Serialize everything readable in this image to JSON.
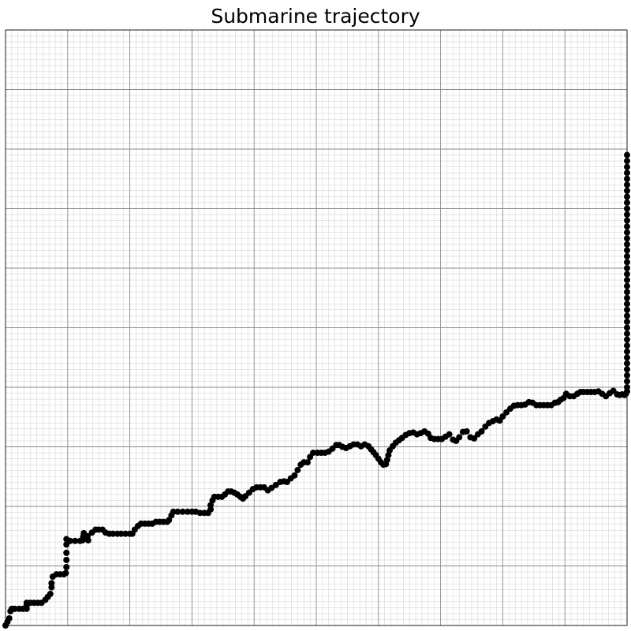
{
  "chart_data": {
    "type": "scatter",
    "title": "Submarine trajectory",
    "xlabel": "",
    "ylabel": "",
    "grid": true,
    "xlim": [
      0,
      100
    ],
    "ylim": [
      0,
      100
    ],
    "major_ticks": 10,
    "minor_ticks_per_major": 10,
    "points": [
      [
        0.0,
        0.0
      ],
      [
        0.3,
        0.6
      ],
      [
        0.6,
        1.2
      ],
      [
        0.8,
        2.4
      ],
      [
        1.0,
        2.8
      ],
      [
        1.5,
        2.8
      ],
      [
        2.2,
        2.8
      ],
      [
        2.8,
        2.8
      ],
      [
        3.4,
        2.8
      ],
      [
        3.4,
        3.4
      ],
      [
        3.4,
        3.8
      ],
      [
        4.0,
        3.8
      ],
      [
        4.6,
        3.8
      ],
      [
        5.2,
        3.8
      ],
      [
        5.8,
        3.8
      ],
      [
        6.4,
        4.3
      ],
      [
        6.8,
        4.8
      ],
      [
        7.2,
        5.3
      ],
      [
        7.4,
        6.4
      ],
      [
        7.4,
        7.1
      ],
      [
        7.6,
        8.2
      ],
      [
        8.2,
        8.6
      ],
      [
        8.8,
        8.6
      ],
      [
        9.4,
        8.6
      ],
      [
        9.7,
        8.8
      ],
      [
        9.8,
        9.8
      ],
      [
        9.8,
        11.0
      ],
      [
        9.8,
        12.2
      ],
      [
        9.8,
        13.6
      ],
      [
        9.8,
        14.5
      ],
      [
        10.4,
        14.2
      ],
      [
        11.2,
        14.2
      ],
      [
        12.0,
        14.2
      ],
      [
        12.4,
        14.3
      ],
      [
        12.5,
        14.9
      ],
      [
        12.6,
        15.5
      ],
      [
        13.2,
        15.0
      ],
      [
        13.3,
        14.3
      ],
      [
        13.9,
        15.6
      ],
      [
        14.5,
        16.1
      ],
      [
        15.0,
        16.1
      ],
      [
        15.6,
        16.1
      ],
      [
        16.1,
        15.6
      ],
      [
        16.7,
        15.4
      ],
      [
        17.3,
        15.4
      ],
      [
        18.0,
        15.4
      ],
      [
        18.6,
        15.4
      ],
      [
        19.3,
        15.4
      ],
      [
        20.0,
        15.4
      ],
      [
        20.4,
        15.4
      ],
      [
        20.8,
        16.1
      ],
      [
        21.3,
        16.7
      ],
      [
        21.8,
        17.1
      ],
      [
        22.4,
        17.1
      ],
      [
        23.0,
        17.1
      ],
      [
        23.6,
        17.1
      ],
      [
        24.2,
        17.4
      ],
      [
        24.8,
        17.4
      ],
      [
        25.4,
        17.4
      ],
      [
        26.0,
        17.4
      ],
      [
        26.3,
        17.7
      ],
      [
        26.7,
        18.5
      ],
      [
        27.0,
        19.1
      ],
      [
        27.7,
        19.1
      ],
      [
        28.5,
        19.1
      ],
      [
        29.3,
        19.1
      ],
      [
        30.0,
        19.1
      ],
      [
        30.6,
        19.1
      ],
      [
        31.3,
        18.9
      ],
      [
        32.0,
        18.9
      ],
      [
        32.6,
        18.9
      ],
      [
        33.0,
        19.5
      ],
      [
        33.0,
        20.2
      ],
      [
        33.3,
        21.0
      ],
      [
        33.6,
        21.6
      ],
      [
        34.2,
        21.6
      ],
      [
        34.8,
        21.6
      ],
      [
        35.3,
        22.0
      ],
      [
        35.8,
        22.5
      ],
      [
        36.3,
        22.5
      ],
      [
        36.8,
        22.3
      ],
      [
        37.3,
        22.0
      ],
      [
        37.8,
        21.6
      ],
      [
        38.2,
        21.3
      ],
      [
        38.6,
        21.7
      ],
      [
        39.2,
        22.3
      ],
      [
        39.8,
        22.9
      ],
      [
        40.4,
        23.2
      ],
      [
        41.0,
        23.2
      ],
      [
        41.6,
        23.2
      ],
      [
        42.2,
        22.7
      ],
      [
        42.8,
        23.1
      ],
      [
        43.5,
        23.6
      ],
      [
        44.2,
        24.1
      ],
      [
        44.8,
        24.2
      ],
      [
        45.3,
        24.1
      ],
      [
        45.9,
        24.7
      ],
      [
        46.5,
        25.2
      ],
      [
        47.0,
        26.1
      ],
      [
        47.5,
        27.0
      ],
      [
        48.0,
        27.4
      ],
      [
        48.6,
        27.4
      ],
      [
        49.0,
        28.3
      ],
      [
        49.5,
        29.0
      ],
      [
        50.2,
        29.0
      ],
      [
        50.8,
        29.0
      ],
      [
        51.4,
        29.0
      ],
      [
        52.0,
        29.2
      ],
      [
        52.6,
        29.7
      ],
      [
        53.2,
        30.3
      ],
      [
        53.7,
        30.3
      ],
      [
        54.2,
        30.0
      ],
      [
        54.8,
        29.8
      ],
      [
        55.4,
        30.1
      ],
      [
        56.0,
        30.4
      ],
      [
        56.6,
        30.4
      ],
      [
        57.2,
        30.1
      ],
      [
        57.8,
        30.4
      ],
      [
        58.4,
        30.1
      ],
      [
        58.8,
        29.6
      ],
      [
        59.2,
        29.1
      ],
      [
        59.6,
        28.6
      ],
      [
        60.0,
        28.0
      ],
      [
        60.4,
        27.4
      ],
      [
        60.8,
        27.0
      ],
      [
        61.2,
        27.1
      ],
      [
        61.4,
        27.8
      ],
      [
        61.6,
        28.6
      ],
      [
        61.8,
        29.4
      ],
      [
        62.3,
        30.1
      ],
      [
        62.8,
        30.7
      ],
      [
        63.3,
        31.1
      ],
      [
        63.8,
        31.5
      ],
      [
        64.4,
        32.0
      ],
      [
        65.0,
        32.3
      ],
      [
        65.6,
        32.4
      ],
      [
        66.2,
        32.1
      ],
      [
        66.8,
        32.3
      ],
      [
        67.4,
        32.6
      ],
      [
        68.0,
        32.2
      ],
      [
        68.4,
        31.5
      ],
      [
        69.0,
        31.3
      ],
      [
        69.6,
        31.3
      ],
      [
        70.2,
        31.3
      ],
      [
        70.8,
        31.7
      ],
      [
        71.4,
        32.1
      ],
      [
        72.0,
        31.2
      ],
      [
        72.5,
        31.0
      ],
      [
        73.0,
        31.6
      ],
      [
        73.6,
        32.5
      ],
      [
        74.2,
        32.6
      ],
      [
        74.8,
        31.6
      ],
      [
        75.4,
        31.4
      ],
      [
        76.0,
        32.1
      ],
      [
        76.6,
        32.6
      ],
      [
        77.2,
        33.4
      ],
      [
        77.8,
        34.0
      ],
      [
        78.4,
        34.3
      ],
      [
        79.0,
        34.6
      ],
      [
        79.5,
        34.4
      ],
      [
        80.0,
        35.1
      ],
      [
        80.6,
        35.8
      ],
      [
        81.2,
        36.4
      ],
      [
        81.8,
        36.9
      ],
      [
        82.4,
        37.0
      ],
      [
        83.0,
        37.0
      ],
      [
        83.6,
        37.1
      ],
      [
        84.2,
        37.5
      ],
      [
        84.8,
        37.4
      ],
      [
        85.4,
        37.0
      ],
      [
        86.0,
        37.0
      ],
      [
        86.6,
        37.0
      ],
      [
        87.2,
        37.0
      ],
      [
        87.8,
        37.0
      ],
      [
        88.4,
        37.4
      ],
      [
        88.9,
        37.5
      ],
      [
        89.3,
        37.9
      ],
      [
        89.8,
        38.2
      ],
      [
        90.2,
        38.9
      ],
      [
        90.8,
        38.5
      ],
      [
        91.4,
        38.5
      ],
      [
        92.0,
        38.9
      ],
      [
        92.5,
        39.2
      ],
      [
        93.0,
        39.2
      ],
      [
        93.6,
        39.2
      ],
      [
        94.2,
        39.2
      ],
      [
        94.8,
        39.2
      ],
      [
        95.4,
        39.3
      ],
      [
        96.0,
        38.9
      ],
      [
        96.6,
        38.5
      ],
      [
        97.2,
        39.0
      ],
      [
        97.8,
        39.4
      ],
      [
        98.4,
        38.8
      ],
      [
        98.8,
        38.7
      ],
      [
        99.2,
        38.8
      ],
      [
        99.6,
        38.7
      ],
      [
        99.8,
        38.9
      ],
      [
        100.0,
        39.3
      ],
      [
        100.0,
        40.0
      ],
      [
        100.0,
        41.0
      ],
      [
        100.0,
        42.0
      ],
      [
        100.0,
        43.0
      ],
      [
        100.0,
        44.0
      ],
      [
        100.0,
        45.0
      ],
      [
        100.0,
        46.0
      ],
      [
        100.0,
        47.0
      ],
      [
        100.0,
        48.0
      ],
      [
        100.0,
        49.0
      ],
      [
        100.0,
        50.0
      ],
      [
        100.0,
        51.0
      ],
      [
        100.0,
        52.0
      ],
      [
        100.0,
        53.0
      ],
      [
        100.0,
        54.0
      ],
      [
        100.0,
        55.0
      ],
      [
        100.0,
        56.0
      ],
      [
        100.0,
        57.0
      ],
      [
        100.0,
        58.0
      ],
      [
        100.0,
        59.0
      ],
      [
        100.0,
        60.0
      ],
      [
        100.0,
        61.0
      ],
      [
        100.0,
        62.0
      ],
      [
        100.0,
        63.0
      ],
      [
        100.0,
        64.0
      ],
      [
        100.0,
        65.0
      ],
      [
        100.0,
        66.0
      ],
      [
        100.0,
        67.0
      ],
      [
        100.0,
        68.0
      ],
      [
        100.0,
        69.0
      ],
      [
        100.0,
        70.0
      ],
      [
        100.0,
        71.0
      ],
      [
        100.0,
        72.0
      ],
      [
        100.0,
        73.0
      ],
      [
        100.0,
        74.0
      ],
      [
        100.0,
        75.0
      ],
      [
        100.0,
        76.0
      ],
      [
        100.0,
        77.0
      ],
      [
        100.0,
        78.0
      ],
      [
        100.0,
        79.0
      ]
    ]
  }
}
